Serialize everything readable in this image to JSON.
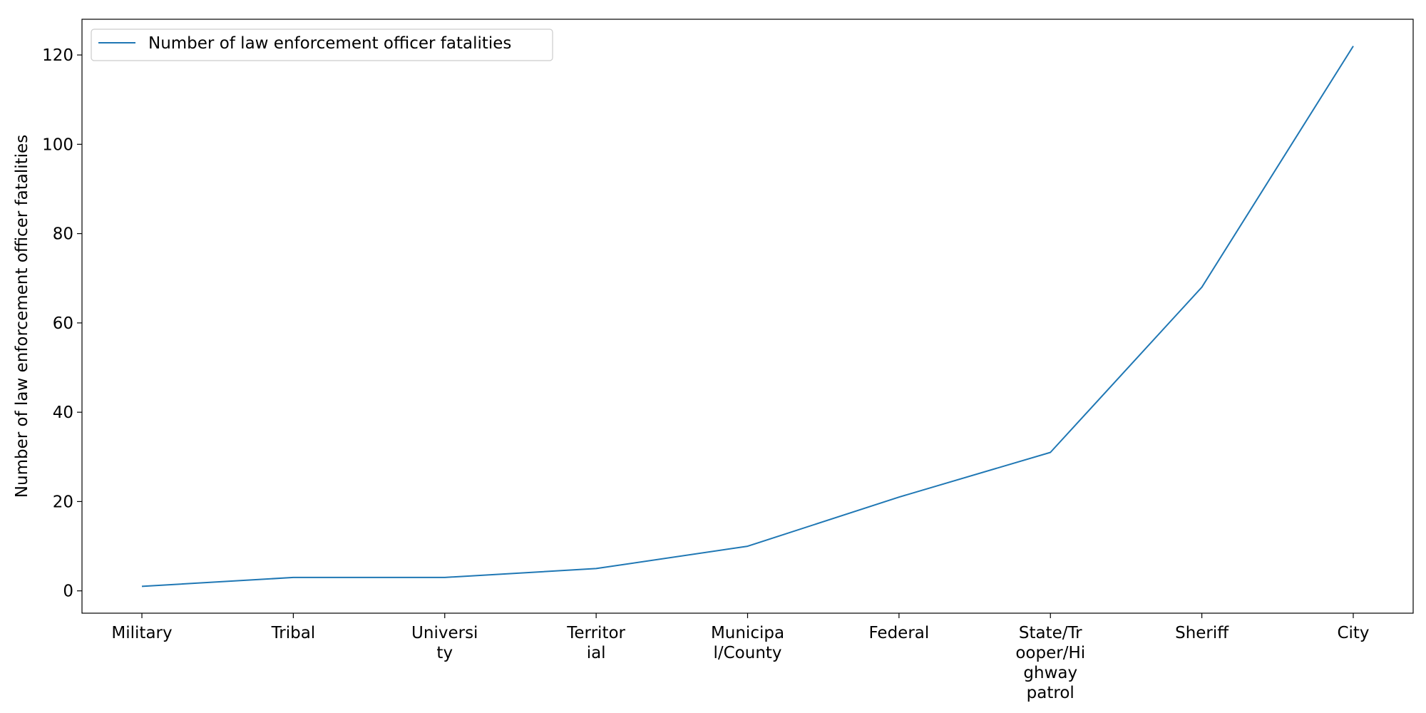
{
  "chart_data": {
    "type": "line",
    "title": "",
    "xlabel": "",
    "ylabel": "Number of law enforcement officer fatalities",
    "categories": [
      "Military",
      "Tribal",
      "University",
      "Territorial",
      "Municipal/County",
      "Federal",
      "State/Trooper/Highway patrol",
      "Sheriff",
      "City"
    ],
    "category_tick_lines": [
      [
        "Military"
      ],
      [
        "Tribal"
      ],
      [
        "Universi",
        "ty"
      ],
      [
        "Territor",
        "ial"
      ],
      [
        "Municipa",
        "l/County"
      ],
      [
        "Federal"
      ],
      [
        "State/Tr",
        "ooper/Hi",
        "ghway",
        "patrol"
      ],
      [
        "Sheriff"
      ],
      [
        "City"
      ]
    ],
    "series": [
      {
        "name": "Number of law enforcement officer fatalities",
        "values": [
          1,
          3,
          3,
          5,
          10,
          21,
          31,
          68,
          122
        ],
        "color": "#1f77b4"
      }
    ],
    "ylim": [
      -5,
      128
    ],
    "yticks": [
      0,
      20,
      40,
      60,
      80,
      100,
      120
    ],
    "grid": false,
    "legend_position": "top-left"
  }
}
